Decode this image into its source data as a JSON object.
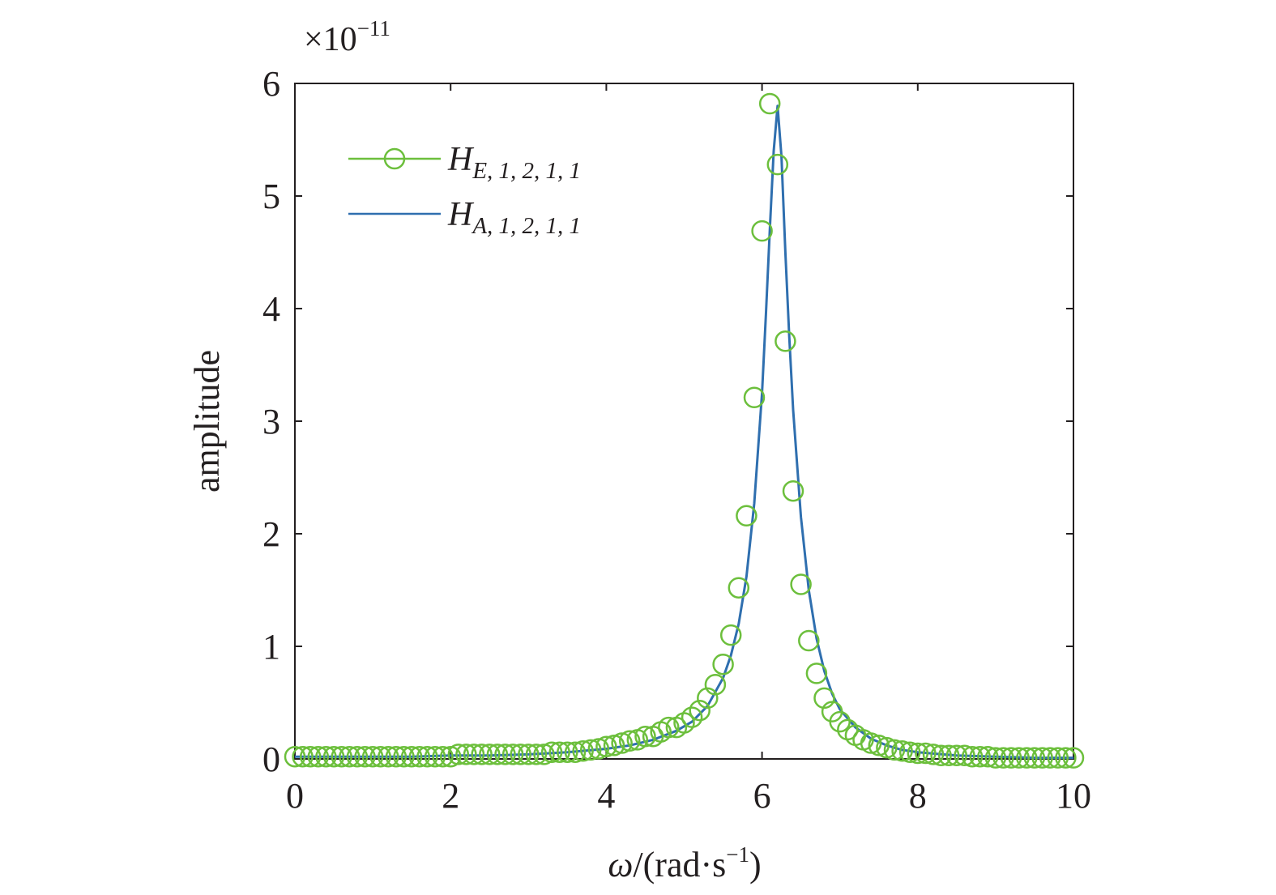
{
  "chart_data": {
    "type": "line",
    "title": "",
    "xlabel": {
      "symbol": "ω",
      "rest": "/(rad·s",
      "sup": "−1",
      "close": ")"
    },
    "ylabel": "amplitude",
    "y_multiplier": {
      "prefix": "×10",
      "exponent": "−11"
    },
    "xlim": [
      0,
      10
    ],
    "ylim": [
      0,
      6
    ],
    "x_ticks": [
      "0",
      "2",
      "4",
      "6",
      "8",
      "10"
    ],
    "y_ticks": [
      "0",
      "1",
      "2",
      "3",
      "4",
      "5",
      "6"
    ],
    "grid": false,
    "legend_position": "top-left",
    "series": [
      {
        "name": {
          "main": "H",
          "sub": "E, 1, 2, 1, 1"
        },
        "style": "markers",
        "marker": "circle",
        "color": "#6cbf3c",
        "x": [
          0,
          0.1,
          0.2,
          0.3,
          0.4,
          0.5,
          0.6,
          0.7,
          0.8,
          0.9,
          1.0,
          1.1,
          1.2,
          1.3,
          1.4,
          1.5,
          1.6,
          1.7,
          1.8,
          1.9,
          2.0,
          2.1,
          2.2,
          2.3,
          2.4,
          2.5,
          2.6,
          2.7,
          2.8,
          2.9,
          3.0,
          3.1,
          3.2,
          3.3,
          3.4,
          3.5,
          3.6,
          3.7,
          3.8,
          3.9,
          4.0,
          4.1,
          4.2,
          4.3,
          4.4,
          4.5,
          4.6,
          4.7,
          4.8,
          4.9,
          5.0,
          5.1,
          5.2,
          5.3,
          5.4,
          5.5,
          5.6,
          5.7,
          5.8,
          5.9,
          6.0,
          6.1,
          6.2,
          6.3,
          6.4,
          6.5,
          6.6,
          6.7,
          6.8,
          6.9,
          7.0,
          7.1,
          7.2,
          7.3,
          7.4,
          7.5,
          7.6,
          7.7,
          7.8,
          7.9,
          8.0,
          8.1,
          8.2,
          8.3,
          8.4,
          8.5,
          8.6,
          8.7,
          8.8,
          8.9,
          9.0,
          9.1,
          9.2,
          9.3,
          9.4,
          9.5,
          9.6,
          9.7,
          9.8,
          9.9,
          10.0
        ],
        "y": [
          0.02,
          0.02,
          0.02,
          0.02,
          0.02,
          0.02,
          0.02,
          0.02,
          0.02,
          0.02,
          0.02,
          0.02,
          0.02,
          0.02,
          0.02,
          0.02,
          0.02,
          0.02,
          0.02,
          0.02,
          0.02,
          0.04,
          0.04,
          0.04,
          0.04,
          0.04,
          0.04,
          0.04,
          0.04,
          0.04,
          0.04,
          0.04,
          0.04,
          0.06,
          0.06,
          0.06,
          0.06,
          0.07,
          0.08,
          0.09,
          0.11,
          0.12,
          0.14,
          0.16,
          0.17,
          0.2,
          0.2,
          0.24,
          0.28,
          0.28,
          0.32,
          0.37,
          0.43,
          0.54,
          0.66,
          0.84,
          1.1,
          1.52,
          2.16,
          3.21,
          4.69,
          5.82,
          5.28,
          3.71,
          2.38,
          1.55,
          1.05,
          0.76,
          0.54,
          0.42,
          0.33,
          0.26,
          0.21,
          0.17,
          0.14,
          0.12,
          0.1,
          0.08,
          0.07,
          0.06,
          0.05,
          0.05,
          0.04,
          0.03,
          0.03,
          0.03,
          0.03,
          0.02,
          0.02,
          0.02,
          0.01,
          0.01,
          0.01,
          0.01,
          0.01,
          0.01,
          0.01,
          0.01,
          0.01,
          0.01,
          0.01
        ]
      },
      {
        "name": {
          "main": "H",
          "sub": "A, 1, 2, 1, 1"
        },
        "style": "line",
        "color": "#2f6faf",
        "x": [
          0,
          0.5,
          1.0,
          1.5,
          2.0,
          2.5,
          3.0,
          3.5,
          4.0,
          4.3,
          4.6,
          4.9,
          5.1,
          5.3,
          5.5,
          5.6,
          5.7,
          5.8,
          5.9,
          6.0,
          6.05,
          6.1,
          6.15,
          6.2,
          6.25,
          6.3,
          6.35,
          6.4,
          6.5,
          6.6,
          6.7,
          6.8,
          6.9,
          7.0,
          7.2,
          7.4,
          7.6,
          7.8,
          8.0,
          8.5,
          9.0,
          9.5,
          10.0
        ],
        "y": [
          0.02,
          0.02,
          0.02,
          0.02,
          0.03,
          0.03,
          0.04,
          0.06,
          0.09,
          0.12,
          0.17,
          0.25,
          0.33,
          0.47,
          0.72,
          0.92,
          1.2,
          1.62,
          2.27,
          3.25,
          3.95,
          4.7,
          5.4,
          5.8,
          5.35,
          4.5,
          3.75,
          3.1,
          2.15,
          1.5,
          1.07,
          0.78,
          0.58,
          0.44,
          0.28,
          0.18,
          0.12,
          0.08,
          0.06,
          0.03,
          0.02,
          0.01,
          0.01
        ]
      }
    ]
  }
}
